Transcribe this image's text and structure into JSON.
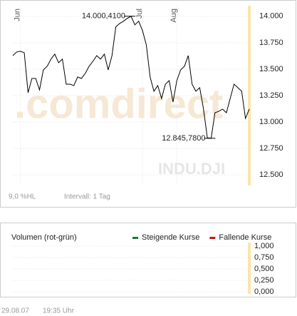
{
  "chart_data": [
    {
      "type": "line",
      "categories": [
        null,
        null,
        "Jun",
        null,
        null,
        null,
        null,
        null,
        null,
        null,
        null,
        null,
        null,
        null,
        null,
        null,
        null,
        null,
        null,
        null,
        null,
        null,
        null,
        null,
        null,
        null,
        null,
        null,
        null,
        null,
        null,
        null,
        null,
        null,
        "Jul",
        null,
        null,
        null,
        null,
        null,
        null,
        null,
        null,
        "Aug",
        null,
        null,
        null,
        null,
        null,
        null,
        null,
        null,
        null,
        null,
        null,
        null,
        null,
        null,
        null,
        null,
        null,
        null,
        null
      ],
      "values": [
        13628,
        13662,
        13669,
        13655,
        13277,
        13412,
        13412,
        13304,
        13493,
        13527,
        13595,
        13642,
        13561,
        13595,
        13358,
        13358,
        13345,
        13426,
        13412,
        13460,
        13527,
        13574,
        13628,
        13595,
        13642,
        13493,
        13628,
        13899,
        13932,
        13953,
        13980,
        14000.41,
        13919,
        13953,
        13865,
        13730,
        13426,
        13291,
        13345,
        13223,
        13358,
        13392,
        13189,
        13392,
        13493,
        13527,
        13628,
        13358,
        13291,
        13325,
        13122,
        12851,
        12845.78,
        13088,
        13101,
        13122,
        13088,
        13223,
        13358,
        13325,
        13291,
        13034,
        13122
      ],
      "value_labels": [
        null,
        null,
        null,
        null,
        null,
        null,
        null,
        null,
        null,
        null,
        null,
        null,
        null,
        null,
        null,
        null,
        null,
        null,
        null,
        null,
        null,
        null,
        null,
        null,
        null,
        null,
        null,
        null,
        null,
        null,
        null,
        "14.000,4100",
        null,
        null,
        null,
        null,
        null,
        null,
        null,
        null,
        null,
        null,
        null,
        null,
        null,
        null,
        null,
        null,
        null,
        null,
        null,
        null,
        "12.845,7800",
        null,
        null,
        null,
        null,
        null,
        null,
        null,
        null,
        null,
        null
      ],
      "color": "#000000",
      "ylim": [
        12400,
        14100
      ],
      "yticks": [
        {
          "value": 12500,
          "label": "12.500"
        },
        {
          "value": 12750,
          "label": "12.750"
        },
        {
          "value": 13000,
          "label": "13.000"
        },
        {
          "value": 13250,
          "label": "13.250"
        },
        {
          "value": 13500,
          "label": "13.500"
        },
        {
          "value": 13750,
          "label": "13.750"
        },
        {
          "value": 14000,
          "label": "14.000"
        }
      ],
      "grid": true,
      "watermark": ".comdirect",
      "symbol": "INDU.DJI",
      "notes": [
        "9,0 %HL",
        "Intervall: 1 Tag"
      ]
    },
    {
      "type": "volume",
      "title": "Volumen (rot-grün)",
      "series": [
        {
          "name": "Steigende Kurse",
          "color": "#1a7a3a"
        },
        {
          "name": "Fallende Kurse",
          "color": "#cc1111"
        }
      ],
      "ylim": [
        0,
        1
      ],
      "yticks": [
        {
          "value": 0,
          "label": "0,000"
        },
        {
          "value": 0.25,
          "label": "0,250"
        },
        {
          "value": 0.5,
          "label": "0,500"
        },
        {
          "value": 0.75,
          "label": "0,750"
        },
        {
          "value": 1,
          "label": "1,000"
        }
      ],
      "grid": true,
      "footer": [
        "29.08.07",
        "19:35 Uhr"
      ]
    }
  ]
}
